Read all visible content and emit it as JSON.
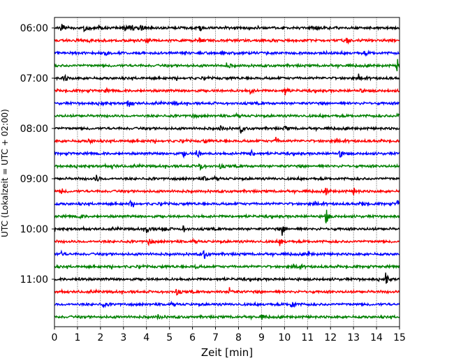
{
  "chart_data": {
    "type": "line",
    "xlabel": "Zeit  [min]",
    "ylabel": "UTC (Lokalzeit = UTC + 02:00)",
    "xlim": [
      0,
      15
    ],
    "x_ticks": [
      0,
      1,
      2,
      3,
      4,
      5,
      6,
      7,
      8,
      9,
      10,
      11,
      12,
      13,
      14,
      15
    ],
    "y_tick_labels": [
      "06:00",
      "07:00",
      "08:00",
      "09:00",
      "10:00",
      "11:00"
    ],
    "trace_interval_min": 15,
    "grid_x": true,
    "trace_colors": [
      "#000000",
      "#ff0000",
      "#0000ff",
      "#008000"
    ],
    "traces": [
      {
        "start": "06:00",
        "color": "#000000",
        "events": [
          {
            "t": 0.3,
            "a": 7
          },
          {
            "t": 1.3,
            "a": 8
          },
          {
            "t": 1.9,
            "a": 4
          },
          {
            "t": 3.0,
            "a": 7
          },
          {
            "t": 3.3,
            "a": 8
          },
          {
            "t": 3.7,
            "a": 8
          },
          {
            "t": 6.3,
            "a": 4
          },
          {
            "t": 11.3,
            "a": 4
          }
        ]
      },
      {
        "start": "06:15",
        "color": "#ff0000",
        "events": [
          {
            "t": 4.0,
            "a": 3
          },
          {
            "t": 6.3,
            "a": 4
          },
          {
            "t": 12.7,
            "a": 3
          }
        ]
      },
      {
        "start": "06:30",
        "color": "#0000ff",
        "events": [
          {
            "t": 2.2,
            "a": 3
          },
          {
            "t": 13.5,
            "a": 3
          }
        ]
      },
      {
        "start": "06:45",
        "color": "#008000",
        "events": [
          {
            "t": 7.5,
            "a": 5
          },
          {
            "t": 14.9,
            "a": 10
          }
        ]
      },
      {
        "start": "07:00",
        "color": "#000000",
        "events": [
          {
            "t": 0.4,
            "a": 6
          },
          {
            "t": 13.2,
            "a": 3
          }
        ]
      },
      {
        "start": "07:15",
        "color": "#ff0000",
        "events": [
          {
            "t": 2.2,
            "a": 3
          },
          {
            "t": 8.5,
            "a": 4
          },
          {
            "t": 10.0,
            "a": 8
          },
          {
            "t": 13.3,
            "a": 3
          }
        ]
      },
      {
        "start": "07:30",
        "color": "#0000ff",
        "events": [
          {
            "t": 2.0,
            "a": 3
          },
          {
            "t": 3.2,
            "a": 8
          },
          {
            "t": 5.2,
            "a": 3
          }
        ]
      },
      {
        "start": "07:45",
        "color": "#008000",
        "events": [
          {
            "t": 6.0,
            "a": 3
          },
          {
            "t": 14.9,
            "a": 3
          }
        ]
      },
      {
        "start": "08:00",
        "color": "#000000",
        "events": [
          {
            "t": 7.2,
            "a": 4
          },
          {
            "t": 8.1,
            "a": 6
          },
          {
            "t": 10.0,
            "a": 3
          }
        ]
      },
      {
        "start": "08:15",
        "color": "#ff0000",
        "events": [
          {
            "t": 1.5,
            "a": 4
          },
          {
            "t": 6.5,
            "a": 3
          },
          {
            "t": 9.6,
            "a": 6
          }
        ]
      },
      {
        "start": "08:30",
        "color": "#0000ff",
        "events": [
          {
            "t": 5.6,
            "a": 4
          },
          {
            "t": 6.2,
            "a": 8
          },
          {
            "t": 8.5,
            "a": 7
          },
          {
            "t": 12.4,
            "a": 7
          }
        ]
      },
      {
        "start": "08:45",
        "color": "#008000",
        "events": [
          {
            "t": 2.5,
            "a": 3
          },
          {
            "t": 6.3,
            "a": 8
          },
          {
            "t": 7.2,
            "a": 3
          }
        ]
      },
      {
        "start": "09:00",
        "color": "#000000",
        "events": [
          {
            "t": 1.8,
            "a": 6
          },
          {
            "t": 6.5,
            "a": 3
          }
        ]
      },
      {
        "start": "09:15",
        "color": "#ff0000",
        "events": [
          {
            "t": 0.3,
            "a": 4
          },
          {
            "t": 11.8,
            "a": 5
          },
          {
            "t": 13.0,
            "a": 5
          }
        ]
      },
      {
        "start": "09:30",
        "color": "#0000ff",
        "events": [
          {
            "t": 3.3,
            "a": 5
          },
          {
            "t": 13.4,
            "a": 3
          },
          {
            "t": 14.9,
            "a": 4
          }
        ]
      },
      {
        "start": "09:45",
        "color": "#008000",
        "events": [
          {
            "t": 1.1,
            "a": 4
          },
          {
            "t": 11.8,
            "a": 11
          }
        ]
      },
      {
        "start": "10:00",
        "color": "#000000",
        "events": [
          {
            "t": 4.0,
            "a": 6
          },
          {
            "t": 4.7,
            "a": 6
          },
          {
            "t": 5.6,
            "a": 4
          },
          {
            "t": 9.9,
            "a": 8
          }
        ]
      },
      {
        "start": "10:15",
        "color": "#ff0000",
        "events": [
          {
            "t": 4.1,
            "a": 7
          },
          {
            "t": 9.8,
            "a": 6
          }
        ]
      },
      {
        "start": "10:30",
        "color": "#0000ff",
        "events": [
          {
            "t": 0.3,
            "a": 3
          },
          {
            "t": 6.5,
            "a": 8
          },
          {
            "t": 11.0,
            "a": 3
          }
        ]
      },
      {
        "start": "10:45",
        "color": "#008000",
        "events": [
          {
            "t": 6.1,
            "a": 3
          },
          {
            "t": 10.6,
            "a": 3
          }
        ]
      },
      {
        "start": "11:00",
        "color": "#000000",
        "events": [
          {
            "t": 1.1,
            "a": 3
          },
          {
            "t": 14.4,
            "a": 9
          }
        ]
      },
      {
        "start": "11:15",
        "color": "#ff0000",
        "events": [
          {
            "t": 5.3,
            "a": 5
          },
          {
            "t": 7.6,
            "a": 7
          }
        ]
      },
      {
        "start": "11:30",
        "color": "#0000ff",
        "events": [
          {
            "t": 2.1,
            "a": 4
          },
          {
            "t": 10.3,
            "a": 8
          }
        ]
      },
      {
        "start": "11:45",
        "color": "#008000",
        "events": [
          {
            "t": 4.5,
            "a": 3
          },
          {
            "t": 9.0,
            "a": 3
          }
        ]
      }
    ]
  }
}
